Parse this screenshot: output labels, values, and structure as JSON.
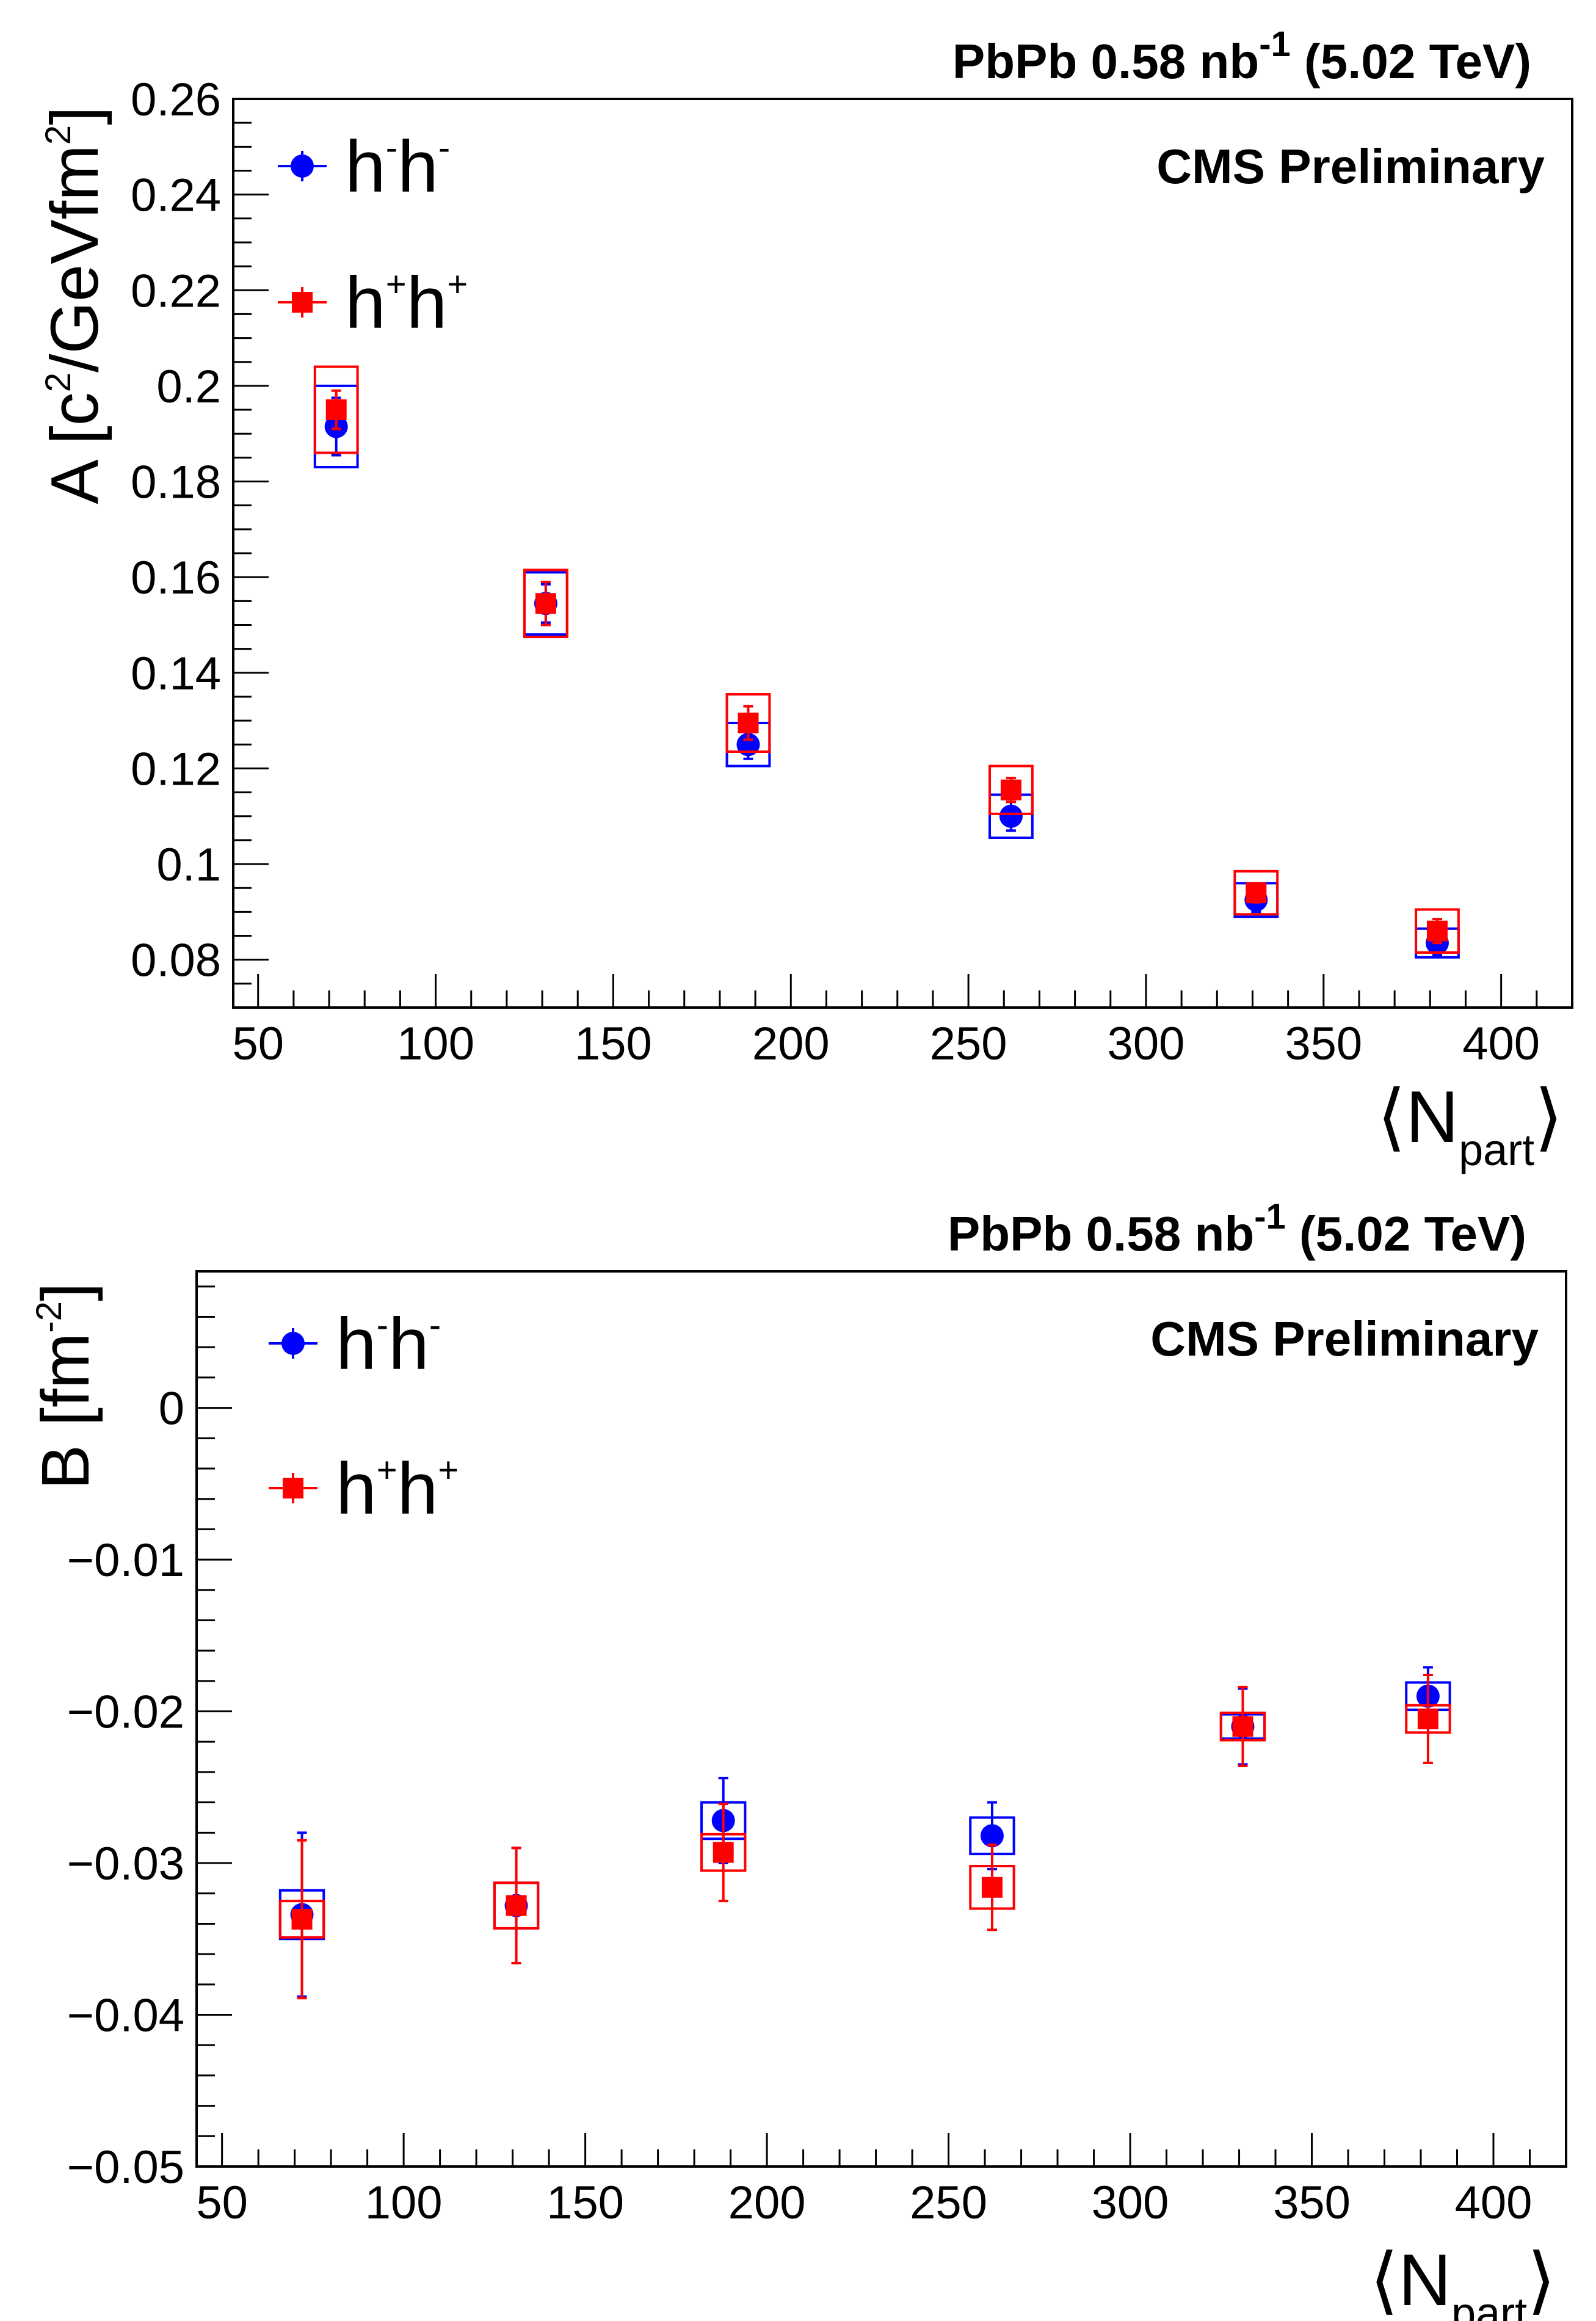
{
  "colors": {
    "hmhm": "#0000ff",
    "hphp": "#ff0000",
    "axis": "#000000"
  },
  "chart_data": [
    {
      "type": "scatter",
      "header": {
        "main": "PbPb 0.58 nb",
        "sup": "-1",
        "rest": " (5.02 TeV)"
      },
      "label": "CMS Preliminary",
      "ylabel": {
        "prefix": "A [c",
        "sup1": "2",
        "middle": "/GeVfm",
        "sup2": "2",
        "suffix": "]"
      },
      "xlabel": {
        "open": "⟨N",
        "sub": "part",
        "close": "⟩"
      },
      "xlim": [
        43,
        420
      ],
      "ylim": [
        0.07,
        0.26
      ],
      "x_ticks": [
        "50",
        "100",
        "150",
        "200",
        "250",
        "300",
        "350",
        "400"
      ],
      "y_ticks": [
        "0.08",
        "0.1",
        "0.12",
        "0.14",
        "0.16",
        "0.18",
        "0.2",
        "0.22",
        "0.24",
        "0.26"
      ],
      "x_minor_step": 10,
      "y_minor_step": 0.005,
      "syst_half_width": 6,
      "series": [
        {
          "name": "h⁻h⁻",
          "legend": {
            "base1": "h",
            "sup1": "-",
            "base2": "h",
            "sup2": "-"
          },
          "marker": "circle",
          "color_key": "hmhm",
          "x": [
            72,
            131,
            188,
            262,
            331,
            382
          ],
          "y": [
            0.1915,
            0.1545,
            0.125,
            0.11,
            0.0925,
            0.0835
          ],
          "stat": [
            0.006,
            0.004,
            0.003,
            0.003,
            0.0025,
            0.0025
          ],
          "syst": [
            0.0085,
            0.0065,
            0.0045,
            0.0045,
            0.0035,
            0.003
          ]
        },
        {
          "name": "h⁺h⁺",
          "legend": {
            "base1": "h",
            "sup1": "+",
            "base2": "h",
            "sup2": "+"
          },
          "marker": "square",
          "color_key": "hphp",
          "x": [
            72,
            131,
            188,
            262,
            331,
            382
          ],
          "y": [
            0.195,
            0.1545,
            0.1295,
            0.1155,
            0.094,
            0.086
          ],
          "stat": [
            0.004,
            0.0045,
            0.0035,
            0.0025,
            0.002,
            0.0025
          ],
          "syst": [
            0.009,
            0.007,
            0.006,
            0.005,
            0.0045,
            0.0045
          ]
        }
      ]
    },
    {
      "type": "scatter",
      "header": {
        "main": "PbPb 0.58 nb",
        "sup": "-1",
        "rest": " (5.02 TeV)"
      },
      "label": "CMS Preliminary",
      "ylabel": {
        "prefix": "B [fm",
        "sup1": "-2",
        "middle": "",
        "sup2": "",
        "suffix": "]"
      },
      "xlabel": {
        "open": "⟨N",
        "sub": "part",
        "close": "⟩"
      },
      "xlim": [
        43,
        420
      ],
      "ylim": [
        -0.05,
        0.009
      ],
      "x_ticks": [
        "50",
        "100",
        "150",
        "200",
        "250",
        "300",
        "350",
        "400"
      ],
      "y_ticks": [
        "−0.05",
        "−0.04",
        "−0.03",
        "−0.02",
        "−0.01",
        "0"
      ],
      "y_tick_values": [
        -0.05,
        -0.04,
        -0.03,
        -0.02,
        -0.01,
        0
      ],
      "x_minor_step": 10,
      "y_minor_step": 0.002,
      "syst_half_width": 6,
      "series": [
        {
          "name": "h⁻h⁻",
          "legend": {
            "base1": "h",
            "sup1": "-",
            "base2": "h",
            "sup2": "-"
          },
          "marker": "circle",
          "color_key": "hmhm",
          "x": [
            72,
            131,
            188,
            262,
            331,
            382
          ],
          "y": [
            -0.0334,
            -0.0328,
            -0.0272,
            -0.0282,
            -0.021,
            -0.019
          ],
          "stat": [
            0.0054,
            0.0038,
            0.0028,
            0.0022,
            0.0025,
            0.0019
          ],
          "syst": [
            0.0016,
            0.0015,
            0.0012,
            0.0012,
            0.0008,
            0.0009
          ]
        },
        {
          "name": "h⁺h⁺",
          "legend": {
            "base1": "h",
            "sup1": "+",
            "base2": "h",
            "sup2": "+"
          },
          "marker": "square",
          "color_key": "hphp",
          "x": [
            72,
            131,
            188,
            262,
            331,
            382
          ],
          "y": [
            -0.0337,
            -0.0328,
            -0.0293,
            -0.0316,
            -0.021,
            -0.0205
          ],
          "stat": [
            0.0052,
            0.0038,
            0.0032,
            0.0028,
            0.0026,
            0.0029
          ],
          "syst": [
            0.0012,
            0.0015,
            0.0012,
            0.0014,
            0.0009,
            0.0009
          ]
        }
      ]
    }
  ]
}
